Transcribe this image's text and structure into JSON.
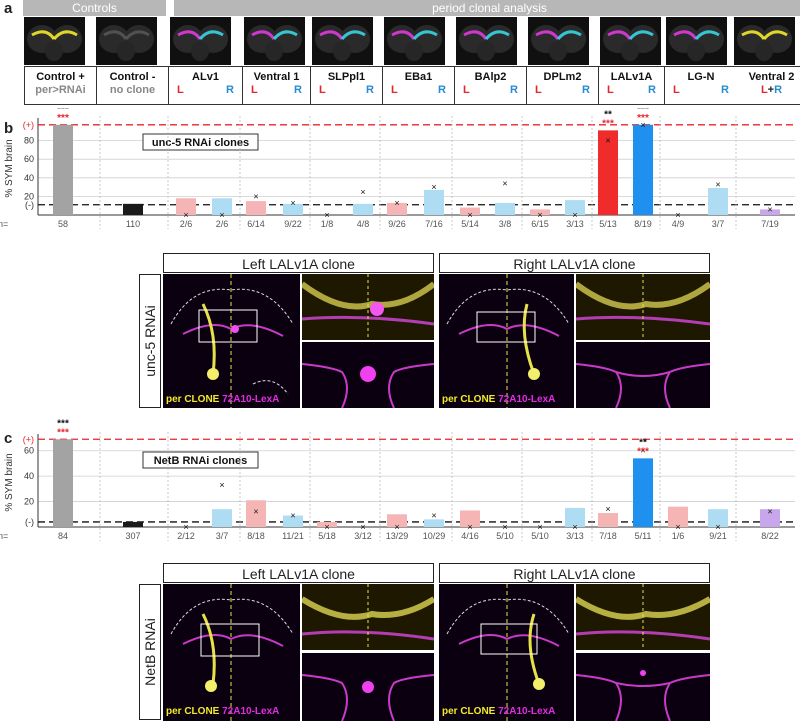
{
  "panel_a": {
    "letter": "a",
    "header_controls": "Controls",
    "header_period": "period clonal analysis",
    "labels": [
      {
        "name": "Control +",
        "sub": "per>RNAi",
        "sub_color": "grey"
      },
      {
        "name": "Control -",
        "sub": "no clone",
        "sub_color": "grey"
      },
      {
        "name": "ALv1",
        "l": "L",
        "r": "R"
      },
      {
        "name": "Ventral 1",
        "l": "L",
        "r": "R"
      },
      {
        "name": "SLPpl1",
        "l": "L",
        "r": "R"
      },
      {
        "name": "EBa1",
        "l": "L",
        "r": "R"
      },
      {
        "name": "BAlp2",
        "l": "L",
        "r": "R"
      },
      {
        "name": "DPLm2",
        "l": "L",
        "r": "R"
      },
      {
        "name": "LALv1A",
        "l": "L",
        "r": "R"
      },
      {
        "name": "LG-N",
        "l": "L",
        "r": "R"
      },
      {
        "name": "Ventral 2",
        "lr": [
          "L",
          "+",
          "R"
        ]
      }
    ]
  },
  "panel_b": {
    "letter": "b",
    "chart_title": "unc-5 RNAi clones",
    "image_row_label": "unc-5 RNAi",
    "left_title": "Left LALv1A clone",
    "right_title": "Right LALv1A clone",
    "legend_per": "per CLONE",
    "legend_lexa": "72A10-LexA"
  },
  "panel_c": {
    "letter": "c",
    "chart_title": "NetB RNAi clones",
    "image_row_label": "NetB RNAi",
    "left_title": "Left LALv1A clone",
    "right_title": "Right LALv1A clone",
    "legend_per": "per CLONE",
    "legend_lexa": "72A10-LexA"
  },
  "colors": {
    "control_pos": "#a3a3a3",
    "control_neg": "#1a1a1a",
    "left_light": "#f6b5b5",
    "right_light": "#aedcf2",
    "left_strong": "#ef2b2b",
    "right_strong": "#1e90f0",
    "both": "#c8a6ec",
    "sig_black": "#111111",
    "sig_red": "#e8242a",
    "pos_line": "#e8242a",
    "neg_line": "#111111"
  },
  "chart_data": [
    {
      "type": "bar",
      "title": "unc-5 RNAi clones",
      "ylabel": "% SYM brain",
      "ytick_labels": [
        "(-)",
        "20",
        "40",
        "60",
        "80",
        "(+)"
      ],
      "ylim": [
        0,
        100
      ],
      "n_label": "n=",
      "positive_level": 97,
      "negative_level": 11,
      "categories": [
        "Control +",
        "Control -",
        "ALv1 L",
        "ALv1 R",
        "Ventral 1 L",
        "Ventral 1 R",
        "SLPpl1 L",
        "SLPpl1 R",
        "EBa1 L",
        "EBa1 R",
        "BAlp2 L",
        "BAlp2 R",
        "DPLm2 L",
        "DPLm2 R",
        "LALv1A L",
        "LALv1A R",
        "LG-N L",
        "LG-N R",
        "Ventral 2 L+R"
      ],
      "values": [
        97,
        12,
        18,
        18,
        15,
        12,
        0,
        12,
        13,
        27,
        8,
        13,
        6,
        16,
        91,
        97,
        0,
        29,
        6
      ],
      "means": [
        null,
        null,
        0,
        0,
        20,
        13,
        0,
        25,
        13,
        30,
        0,
        34,
        0,
        0,
        80,
        97,
        0,
        33,
        6
      ],
      "n": [
        "58",
        "110",
        "2/6",
        "2/6",
        "6/14",
        "9/22",
        "1/8",
        "4/8",
        "9/26",
        "7/16",
        "5/14",
        "3/8",
        "6/15",
        "3/13",
        "5/13",
        "8/19",
        "4/9",
        "3/7",
        "7/19"
      ],
      "color_keys": [
        "control_pos",
        "control_neg",
        "left_light",
        "right_light",
        "left_light",
        "right_light",
        "left_light",
        "right_light",
        "left_light",
        "right_light",
        "left_light",
        "right_light",
        "left_light",
        "right_light",
        "left_strong",
        "right_strong",
        "left_light",
        "right_light",
        "both"
      ],
      "significance": [
        {
          "category": "Control +",
          "black": "***",
          "red": "***"
        },
        {
          "category": "LALv1A L",
          "black": "**",
          "red": "***"
        },
        {
          "category": "LALv1A R",
          "black": "***",
          "red": "***"
        }
      ]
    },
    {
      "type": "bar",
      "title": "NetB RNAi clones",
      "ylabel": "% SYM brain",
      "ytick_labels": [
        "(-)",
        "20",
        "40",
        "60",
        "(+)"
      ],
      "ylim": [
        0,
        70
      ],
      "n_label": "n=",
      "positive_level": 69,
      "negative_level": 4,
      "categories": [
        "Control +",
        "Control -",
        "ALv1 L",
        "ALv1 R",
        "Ventral 1 L",
        "Ventral 1 R",
        "SLPpl1 L",
        "SLPpl1 R",
        "EBa1 L",
        "EBa1 R",
        "BAlp2 L",
        "BAlp2 R",
        "DPLm2 L",
        "DPLm2 R",
        "LALv1A L",
        "LALv1A R",
        "LG-N L",
        "LG-N R",
        "Ventral 2 L+R"
      ],
      "values": [
        69,
        4,
        0,
        14,
        21,
        9,
        4,
        0,
        10,
        6,
        13,
        0,
        0,
        15,
        11,
        54,
        16,
        14,
        14
      ],
      "means": [
        null,
        null,
        0,
        33,
        12,
        9,
        0,
        0,
        0,
        9,
        0,
        0,
        0,
        0,
        14,
        60,
        0,
        0,
        12
      ],
      "n": [
        "84",
        "307",
        "2/12",
        "3/7",
        "8/18",
        "11/21",
        "5/18",
        "3/12",
        "13/29",
        "10/29",
        "4/16",
        "5/10",
        "5/10",
        "3/13",
        "7/18",
        "5/11",
        "1/6",
        "9/21",
        "8/22"
      ],
      "color_keys": [
        "control_pos",
        "control_neg",
        "left_light",
        "right_light",
        "left_light",
        "right_light",
        "left_light",
        "right_light",
        "left_light",
        "right_light",
        "left_light",
        "right_light",
        "left_light",
        "right_light",
        "left_light",
        "right_strong",
        "left_light",
        "right_light",
        "both"
      ],
      "significance": [
        {
          "category": "Control +",
          "black": "***",
          "red": "***"
        },
        {
          "category": "LALv1A R",
          "black": "**",
          "red": "***"
        }
      ]
    }
  ]
}
